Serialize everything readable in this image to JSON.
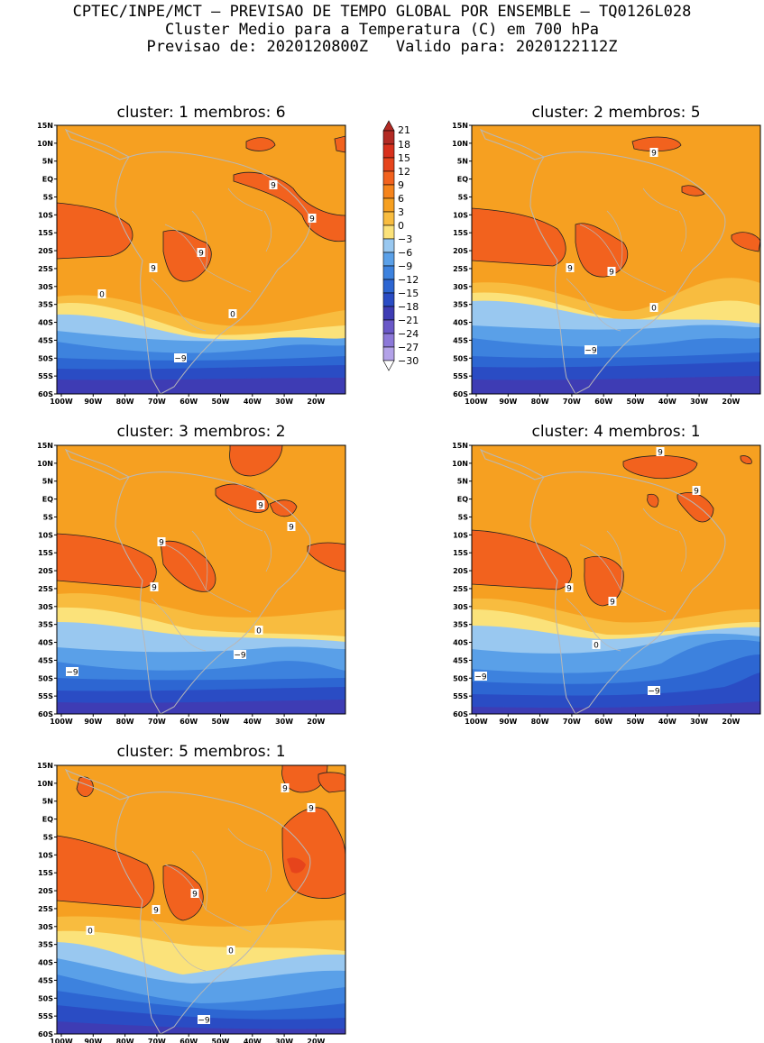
{
  "header": {
    "line1": "CPTEC/INPE/MCT – PREVISAO DE TEMPO GLOBAL POR ENSEMBLE – TQ0126L028",
    "line2": "Cluster Medio para a Temperatura (C) em 700 hPa",
    "line3": "Previsao de: 2020120800Z   Valido para: 2020122112Z"
  },
  "colors": {
    "t21": "#b22a24",
    "t18": "#d8301c",
    "t15": "#e6441c",
    "t12": "#f2621e",
    "t9": "#f5841c",
    "t6": "#f6a021",
    "t3": "#f8bc3f",
    "t0": "#fbe27a",
    "tm3": "#99c8f0",
    "tm6": "#5aa0e8",
    "tm9": "#3d82de",
    "tm12": "#2d66d2",
    "tm15": "#2a4cc4",
    "tm18": "#3e3cb4",
    "tm21": "#6a58c8",
    "tm24": "#8c78d8",
    "tm27": "#b3a2e8",
    "tm30": "#ffffff",
    "land_outline": "#b8b8b8",
    "contour": "#222222"
  },
  "legend": {
    "labels": [
      "21",
      "18",
      "15",
      "12",
      "9",
      "6",
      "3",
      "0",
      "−3",
      "−6",
      "−9",
      "−12",
      "−15",
      "−18",
      "−21",
      "−24",
      "−27",
      "−30"
    ]
  },
  "axes": {
    "lat_labels": [
      "15N",
      "10N",
      "5N",
      "EQ",
      "5S",
      "10S",
      "15S",
      "20S",
      "25S",
      "30S",
      "35S",
      "40S",
      "45S",
      "50S",
      "55S",
      "60S"
    ],
    "lon_labels": [
      "100W",
      "90W",
      "80W",
      "70W",
      "60W",
      "50W",
      "40W",
      "30W",
      "20W"
    ]
  },
  "panels": [
    {
      "title": "cluster: 1   membros: 6",
      "contour_labels": [
        "9",
        "9",
        "9",
        "9",
        "0",
        "0",
        "−9"
      ]
    },
    {
      "title": "cluster: 2   membros: 5",
      "contour_labels": [
        "9",
        "9",
        "9",
        "0",
        "−9"
      ]
    },
    {
      "title": "cluster: 3   membros: 2",
      "contour_labels": [
        "9",
        "9",
        "9",
        "9",
        "0",
        "−9",
        "−9"
      ]
    },
    {
      "title": "cluster: 4   membros: 1",
      "contour_labels": [
        "9",
        "9",
        "9",
        "9",
        "0",
        "−9",
        "−9"
      ]
    },
    {
      "title": "cluster: 5   membros: 1",
      "contour_labels": [
        "9",
        "9",
        "9",
        "9",
        "0",
        "0",
        "−9"
      ]
    }
  ]
}
